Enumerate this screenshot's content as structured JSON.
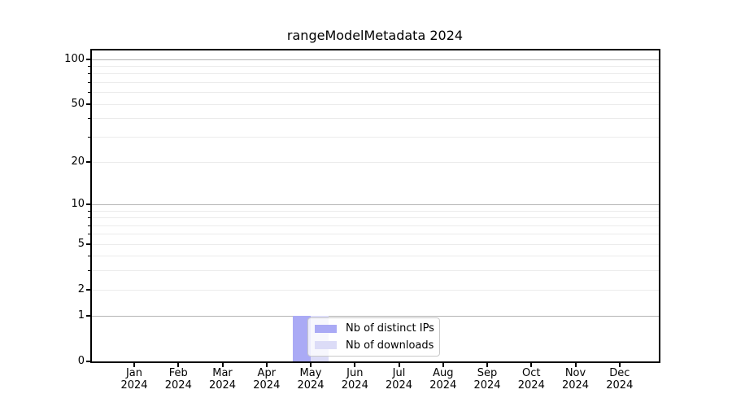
{
  "chart_data": {
    "type": "bar",
    "title": "rangeModelMetadata 2024",
    "x_months": [
      "Jan",
      "Feb",
      "Mar",
      "Apr",
      "May",
      "Jun",
      "Jul",
      "Aug",
      "Sep",
      "Oct",
      "Nov",
      "Dec"
    ],
    "x_year": "2024",
    "series": [
      {
        "name": "Nb of distinct IPs",
        "color": "#aaaaf5",
        "values": [
          0,
          0,
          0,
          0,
          1,
          0,
          0,
          0,
          0,
          0,
          0,
          0
        ]
      },
      {
        "name": "Nb of downloads",
        "color": "#dcdcf7",
        "values": [
          0,
          0,
          0,
          0,
          1,
          0,
          0,
          0,
          0,
          0,
          0,
          0
        ]
      }
    ],
    "yscale": "log1p",
    "ylim": [
      0,
      114
    ],
    "ytick_values": [
      0,
      1,
      2,
      5,
      10,
      20,
      50,
      100
    ],
    "ytick_labels": [
      "0",
      "1",
      "2",
      "5",
      "10",
      "20",
      "50",
      "100"
    ],
    "grid_major_values": [
      1,
      10,
      100
    ],
    "grid_minor_values": [
      2,
      3,
      4,
      5,
      6,
      7,
      8,
      9,
      20,
      30,
      40,
      50,
      60,
      70,
      80,
      90
    ],
    "minor_tick_values": [
      3,
      4,
      6,
      7,
      8,
      9,
      30,
      40,
      60,
      70,
      80,
      90
    ],
    "legend_position": "inside lower-center-left",
    "grid": "on"
  },
  "colors": {
    "grid_major": "#b4b4b4",
    "grid_minor": "#ebebeb",
    "spine": "#000000",
    "text": "#000000",
    "legend_border": "#c9c9c9"
  }
}
